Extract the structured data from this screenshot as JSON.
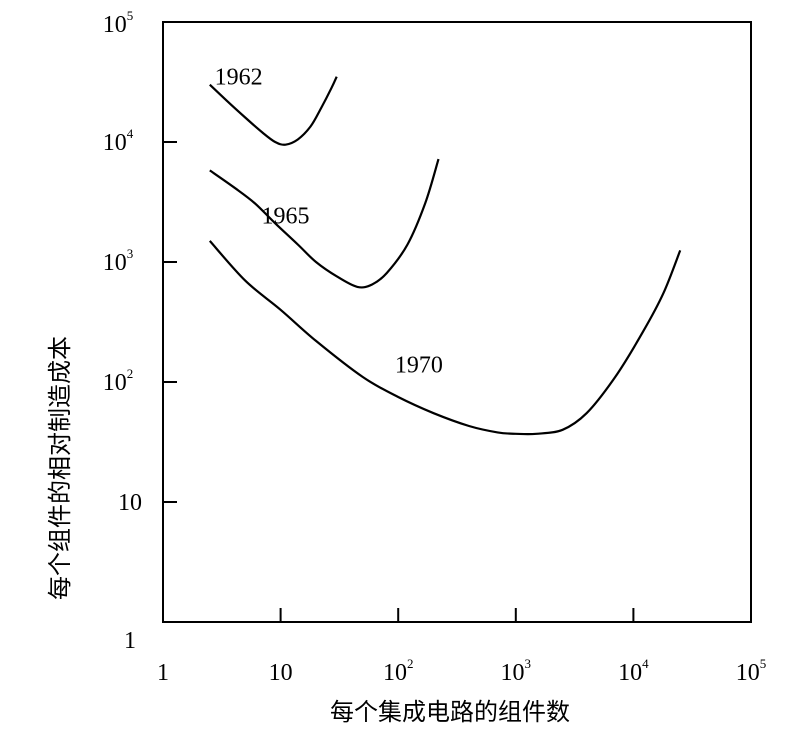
{
  "chart_data": {
    "type": "line",
    "xscale": "log",
    "yscale": "log",
    "xlim": [
      1,
      100000
    ],
    "ylim": [
      1,
      100000
    ],
    "xlabel": "每个集成电路的组件数",
    "ylabel": "每个组件的相对制造成本",
    "x_ticks": [
      {
        "value": 1,
        "base": "1",
        "exp": ""
      },
      {
        "value": 10,
        "base": "10",
        "exp": ""
      },
      {
        "value": 100,
        "base": "10",
        "exp": "2"
      },
      {
        "value": 1000,
        "base": "10",
        "exp": "3"
      },
      {
        "value": 10000,
        "base": "10",
        "exp": "4"
      },
      {
        "value": 100000,
        "base": "10",
        "exp": "5"
      }
    ],
    "y_ticks": [
      {
        "value": 1,
        "base": "1",
        "exp": ""
      },
      {
        "value": 10,
        "base": "10",
        "exp": ""
      },
      {
        "value": 100,
        "base": "10",
        "exp": "2"
      },
      {
        "value": 1000,
        "base": "10",
        "exp": "3"
      },
      {
        "value": 10000,
        "base": "10",
        "exp": "4"
      },
      {
        "value": 100000,
        "base": "10",
        "exp": "5"
      }
    ],
    "grid": false,
    "series": [
      {
        "name": "1962",
        "label_x": 4.4,
        "label_y": 30000,
        "x": [
          2.5,
          3.5,
          5,
          7,
          9,
          11,
          14,
          18,
          22,
          27,
          30
        ],
        "y": [
          30000,
          22000,
          16000,
          12000,
          10000,
          9500,
          10500,
          13500,
          19000,
          28000,
          35000
        ]
      },
      {
        "name": "1965",
        "label_x": 11,
        "label_y": 2100,
        "x": [
          2.5,
          4,
          6,
          9,
          14,
          20,
          30,
          45,
          60,
          80,
          120,
          170,
          220
        ],
        "y": [
          5800,
          4200,
          3100,
          2100,
          1400,
          1000,
          760,
          620,
          650,
          810,
          1400,
          3100,
          7200
        ]
      },
      {
        "name": "1970",
        "label_x": 150,
        "label_y": 120,
        "x": [
          2.5,
          5,
          10,
          20,
          50,
          100,
          200,
          400,
          700,
          1000,
          1500,
          2500,
          4000,
          7000,
          12000,
          18000,
          25000
        ],
        "y": [
          1500,
          700,
          400,
          220,
          110,
          75,
          55,
          43,
          38,
          37,
          37,
          40,
          55,
          110,
          260,
          550,
          1250
        ]
      }
    ]
  }
}
